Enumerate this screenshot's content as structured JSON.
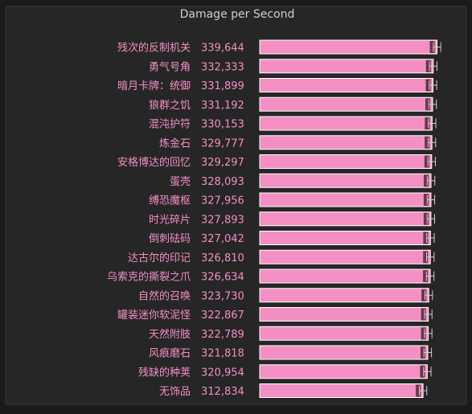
{
  "colors": {
    "background": "#1b1b1b",
    "panel": "#262626",
    "panel_border": "#3a3a3a",
    "title": "#cfcfcf",
    "label": "#f48fc4",
    "bar": "#f48fc4",
    "bar_stroke": "#ffffff",
    "error_bar": "#d0d0d0",
    "marker": "#4a2a35"
  },
  "chart_data": {
    "type": "bar",
    "orientation": "horizontal",
    "title": "Damage per Second",
    "xlabel": "",
    "ylabel": "",
    "xlim": [
      0,
      345000
    ],
    "grid": false,
    "legend": "none",
    "categories": [
      "残次的反制机关",
      "勇气号角",
      "暗月卡牌：统御",
      "狼群之饥",
      "混沌护符",
      "炼金石",
      "安格博达的回忆",
      "蛋壳",
      "缚恐魔枢",
      "时光碎片",
      "倒刺砝码",
      "达古尔的印记",
      "乌索克的撕裂之爪",
      "自然的召唤",
      "罐装迷你软泥怪",
      "天然附肢",
      "风痕磨石",
      "残缺的种荚",
      "无饰品"
    ],
    "value_labels": [
      "339,644",
      "332,333",
      "331,899",
      "331,192",
      "330,153",
      "329,777",
      "329,297",
      "328,093",
      "327,956",
      "327,893",
      "327,042",
      "326,810",
      "326,634",
      "323,730",
      "322,867",
      "322,789",
      "321,818",
      "320,954",
      "312,834"
    ],
    "values": [
      339644,
      332333,
      331899,
      331192,
      330153,
      329777,
      329297,
      328093,
      327956,
      327893,
      327042,
      326810,
      326634,
      323730,
      322867,
      322789,
      321818,
      320954,
      312834
    ],
    "error_low": [
      332500,
      325000,
      324800,
      323900,
      322900,
      322500,
      322000,
      320900,
      320800,
      320700,
      319800,
      319600,
      319400,
      316500,
      315700,
      315600,
      314600,
      313800,
      305700
    ],
    "error_high": [
      346800,
      339600,
      339000,
      338400,
      337400,
      337000,
      336500,
      335300,
      335100,
      335000,
      334200,
      334000,
      333800,
      330900,
      330000,
      329900,
      329000,
      328100,
      320000
    ]
  }
}
